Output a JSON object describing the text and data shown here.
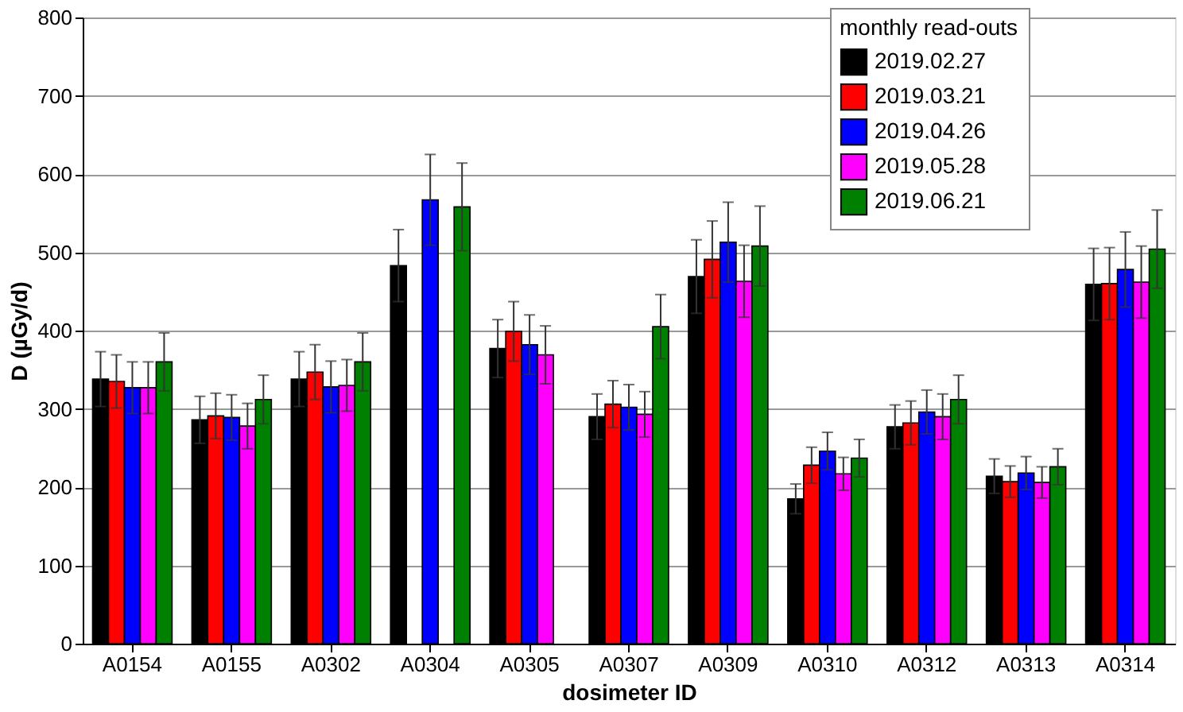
{
  "chart_data": {
    "type": "bar",
    "xlabel": "dosimeter ID",
    "ylabel": "D (µGy/d)",
    "legend_title": "monthly read-outs",
    "legend": "top right",
    "grid": "y",
    "categories": [
      "A0154",
      "A0155",
      "A0302",
      "A0304",
      "A0305",
      "A0307",
      "A0309",
      "A0310",
      "A0312",
      "A0313",
      "A0314"
    ],
    "ylim": [
      0,
      800
    ],
    "yticks": [
      0,
      100,
      200,
      300,
      400,
      500,
      600,
      700,
      800
    ],
    "series": [
      {
        "name": "2019.02.27",
        "color": "#000000",
        "values": [
          338,
          286,
          338,
          483,
          377,
          290,
          469,
          185,
          277,
          214,
          459
        ],
        "errors": [
          35,
          30,
          35,
          46,
          37,
          29,
          47,
          19,
          28,
          22,
          46
        ]
      },
      {
        "name": "2019.03.21",
        "color": "#ff0000",
        "values": [
          335,
          291,
          347,
          null,
          399,
          306,
          491,
          228,
          282,
          207,
          460
        ],
        "errors": [
          34,
          29,
          35,
          null,
          38,
          30,
          49,
          23,
          28,
          20,
          46
        ]
      },
      {
        "name": "2019.04.26",
        "color": "#0000ff",
        "values": [
          327,
          289,
          328,
          567,
          382,
          302,
          513,
          246,
          296,
          218,
          478
        ],
        "errors": [
          33,
          29,
          33,
          58,
          38,
          29,
          51,
          24,
          28,
          21,
          48
        ]
      },
      {
        "name": "2019.05.28",
        "color": "#ff00ff",
        "values": [
          327,
          278,
          330,
          null,
          369,
          293,
          463,
          217,
          290,
          206,
          462
        ],
        "errors": [
          33,
          29,
          33,
          null,
          37,
          29,
          46,
          21,
          29,
          20,
          46
        ]
      },
      {
        "name": "2019.06.21",
        "color": "#008000",
        "values": [
          360,
          312,
          360,
          558,
          null,
          405,
          508,
          237,
          312,
          226,
          504
        ],
        "errors": [
          37,
          31,
          37,
          56,
          null,
          41,
          51,
          24,
          31,
          23,
          50
        ]
      }
    ]
  }
}
